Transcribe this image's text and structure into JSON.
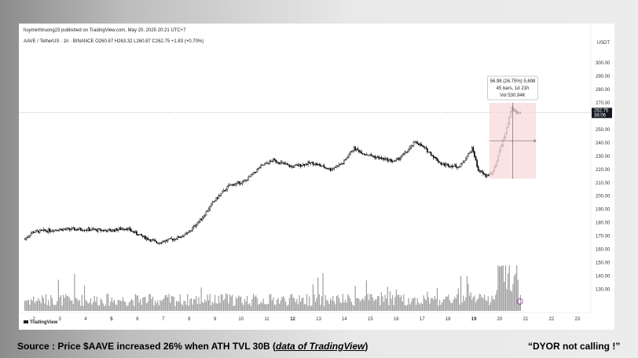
{
  "header": {
    "published": "huyminhtruong23 published on TradingView.com, May 20, 2025 20:21 UTC+7",
    "symbol_line": "AAVE / TetherUS · 1h · BINANCE  O260.87  H263.32  L260.87  C262.75  +1.83 (+0.70%)",
    "currency": "USDT"
  },
  "price_label": {
    "price": "262.75",
    "countdown": "38:06"
  },
  "measure": {
    "line1": "56.98 (26.75%) 5,698",
    "line2": "45 bars, 1d 21h",
    "line3": "Vol 530.94K"
  },
  "watermark": "TradingView",
  "footer": {
    "source_prefix": "Source : Price $AAVE increased 26% when ATH TVL 30B (",
    "source_link": "data of TradingView",
    "source_suffix": ")",
    "note": "“DYOR  not calling !”"
  },
  "colors": {
    "candle": "#000000",
    "volume": "#9e9e9e",
    "measure_box": "#f8d7d7",
    "accent": "#8e24aa"
  },
  "chart_data": {
    "type": "candlestick",
    "interval": "1h",
    "ylim": [
      122,
      306
    ],
    "y_ticks": [
      "300.00",
      "290.00",
      "280.00",
      "270.00",
      "260.00",
      "250.00",
      "240.00",
      "230.00",
      "220.00",
      "210.00",
      "200.00",
      "190.00",
      "180.00",
      "170.00",
      "160.00",
      "150.00",
      "140.00",
      "130.00"
    ],
    "x_ticks": [
      "2",
      "3",
      "4",
      "5",
      "6",
      "7",
      "8",
      "9",
      "10",
      "11",
      "12",
      "13",
      "14",
      "15",
      "16",
      "17",
      "18",
      "19",
      "20",
      "21",
      "22",
      "23"
    ],
    "bold_ticks": [
      "5",
      "12",
      "19"
    ],
    "x_range": [
      1.6,
      23.4
    ],
    "price_path": [
      [
        1.65,
        167
      ],
      [
        2,
        173
      ],
      [
        3,
        175
      ],
      [
        4,
        175
      ],
      [
        5,
        174
      ],
      [
        5.6,
        176
      ],
      [
        6.2,
        170
      ],
      [
        6.8,
        165
      ],
      [
        7.5,
        168
      ],
      [
        8,
        172
      ],
      [
        8.6,
        185
      ],
      [
        9,
        196
      ],
      [
        9.6,
        208
      ],
      [
        10.2,
        211
      ],
      [
        10.8,
        222
      ],
      [
        11.3,
        227
      ],
      [
        12,
        222
      ],
      [
        12.8,
        225
      ],
      [
        13.5,
        220
      ],
      [
        14,
        225
      ],
      [
        14.4,
        236
      ],
      [
        14.8,
        232
      ],
      [
        15.3,
        229
      ],
      [
        16,
        226
      ],
      [
        16.5,
        234
      ],
      [
        16.8,
        241
      ],
      [
        17.2,
        235
      ],
      [
        17.8,
        224
      ],
      [
        18.5,
        222
      ],
      [
        19,
        236
      ],
      [
        19.2,
        220
      ],
      [
        19.5,
        215
      ],
      [
        19.8,
        218
      ],
      [
        20,
        231
      ],
      [
        20.3,
        250
      ],
      [
        20.5,
        266
      ],
      [
        20.7,
        263
      ],
      [
        20.85,
        262.75
      ]
    ],
    "last_price": 262.75,
    "measure_box": {
      "x_start": 19.6,
      "x_end": 21.4,
      "price_low": 213,
      "price_high": 270
    },
    "volume_panel": {
      "max_relative": 1.0
    }
  }
}
